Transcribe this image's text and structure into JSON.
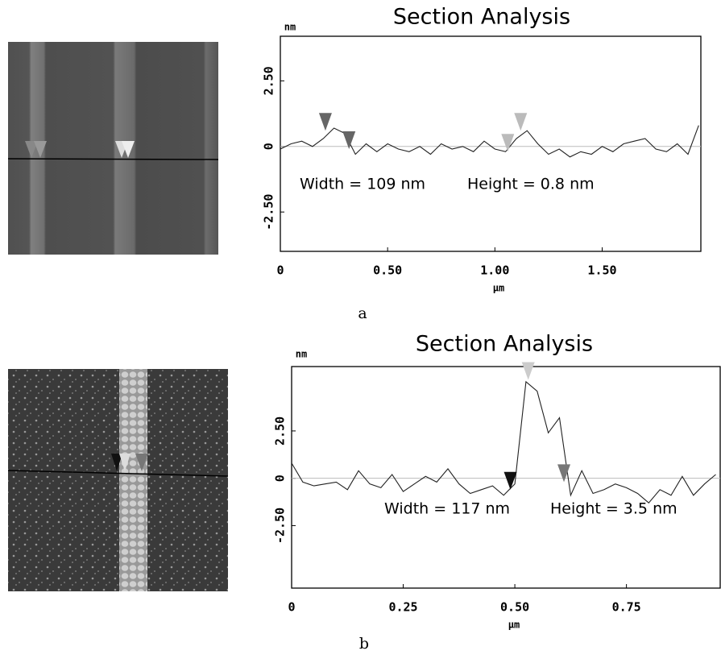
{
  "chart_data": [
    {
      "type": "line",
      "title": "Section Analysis",
      "y_label": "nm",
      "x_label": "μm",
      "panel_label": "a",
      "annotations": [
        "Width = 109 nm",
        "Height = 0.8 nm"
      ],
      "color": "#222222",
      "x": [
        0,
        0.05,
        0.1,
        0.15,
        0.2,
        0.25,
        0.3,
        0.35,
        0.4,
        0.45,
        0.5,
        0.55,
        0.6,
        0.65,
        0.7,
        0.75,
        0.8,
        0.85,
        0.9,
        0.95,
        1.0,
        1.05,
        1.1,
        1.15,
        1.2,
        1.25,
        1.3,
        1.35,
        1.4,
        1.45,
        1.5,
        1.55,
        1.6,
        1.65,
        1.7,
        1.75,
        1.8,
        1.85,
        1.9,
        1.95
      ],
      "values": [
        -0.1,
        0.1,
        0.2,
        0.0,
        0.3,
        0.7,
        0.5,
        -0.3,
        0.1,
        -0.2,
        0.1,
        -0.1,
        -0.2,
        0.0,
        -0.3,
        0.1,
        -0.1,
        0.0,
        -0.2,
        0.2,
        -0.1,
        -0.2,
        0.3,
        0.6,
        0.1,
        -0.3,
        -0.1,
        -0.4,
        -0.2,
        -0.3,
        0.0,
        -0.2,
        0.1,
        0.2,
        0.3,
        -0.1,
        -0.2,
        0.1,
        -0.3,
        0.8
      ],
      "markers": [
        {
          "x": 0.21,
          "y": 0.6,
          "color": "#666666"
        },
        {
          "x": 0.32,
          "y": -0.1,
          "color": "#666666"
        },
        {
          "x": 1.06,
          "y": -0.2,
          "color": "#bbbbbb"
        },
        {
          "x": 1.12,
          "y": 0.6,
          "color": "#bbbbbb"
        }
      ],
      "xlim": [
        0,
        1.96
      ],
      "ylim": [
        -4.0,
        4.2
      ],
      "xticks": [
        0,
        {
          "value": 0.5,
          "label": "0.50"
        },
        {
          "value": 1,
          "label": "1.00"
        },
        {
          "value": 1.5,
          "label": "1.50"
        }
      ],
      "yticks": [
        {
          "value": 2.5,
          "label": "2.50"
        },
        0,
        {
          "value": -2.5,
          "label": "-2.50"
        }
      ]
    },
    {
      "type": "line",
      "title": "Section Analysis",
      "y_label": "nm",
      "x_label": "μm",
      "panel_label": "b",
      "annotations": [
        "Width = 117 nm",
        "Height = 3.5 nm"
      ],
      "color": "#222222",
      "x": [
        0,
        0.025,
        0.05,
        0.075,
        0.1,
        0.125,
        0.15,
        0.175,
        0.2,
        0.225,
        0.25,
        0.275,
        0.3,
        0.325,
        0.35,
        0.375,
        0.4,
        0.425,
        0.45,
        0.475,
        0.5,
        0.525,
        0.55,
        0.575,
        0.6,
        0.625,
        0.65,
        0.675,
        0.7,
        0.725,
        0.75,
        0.775,
        0.8,
        0.825,
        0.85,
        0.875,
        0.9,
        0.925,
        0.95
      ],
      "values": [
        0.8,
        -0.2,
        -0.4,
        -0.3,
        -0.2,
        -0.6,
        0.4,
        -0.3,
        -0.5,
        0.2,
        -0.7,
        -0.3,
        0.1,
        -0.2,
        0.5,
        -0.3,
        -0.8,
        -0.6,
        -0.4,
        -0.9,
        -0.3,
        5.1,
        4.6,
        2.4,
        3.2,
        -0.9,
        0.4,
        -0.8,
        -0.6,
        -0.3,
        -0.5,
        -0.8,
        -1.3,
        -0.6,
        -0.9,
        0.1,
        -0.9,
        -0.3,
        0.2
      ],
      "markers": [
        {
          "x": 0.49,
          "y": -0.6,
          "color": "#111111"
        },
        {
          "x": 0.53,
          "y": 5.2,
          "color": "#cccccc"
        },
        {
          "x": 0.61,
          "y": -0.2,
          "color": "#777777"
        }
      ],
      "xlim": [
        0,
        0.96
      ],
      "ylim": [
        -5.8,
        5.9
      ],
      "xticks": [
        0,
        0.25,
        {
          "value": 0.5,
          "label": "0.50"
        },
        0.75
      ],
      "yticks": [
        {
          "value": 2.5,
          "label": "2.50"
        },
        0,
        {
          "value": -2.5,
          "label": "-2.50"
        }
      ]
    }
  ]
}
